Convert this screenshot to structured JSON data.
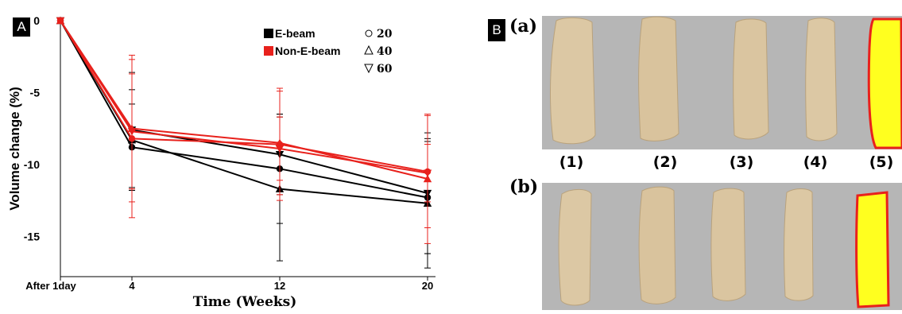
{
  "panel_a": {
    "tag": "A",
    "chart_data": {
      "type": "line",
      "title": "",
      "xlabel": "Time (Weeks)",
      "ylabel": "Volume change (%)",
      "x_categories": [
        "After 1day",
        "4",
        "12",
        "20"
      ],
      "x": [
        0,
        4,
        12,
        20
      ],
      "ylim": [
        -17.8,
        0
      ],
      "yticks": [
        0,
        -5,
        -10,
        -15
      ],
      "ytick_labels": [
        "0",
        "-5",
        "-10",
        "-15"
      ],
      "grid": false,
      "legend_placement": "top-right",
      "legend_colors": [
        {
          "label": "E-beam",
          "color": "#000000"
        },
        {
          "label": "Non-E-beam",
          "color": "#e8211c"
        }
      ],
      "legend_markers": [
        {
          "label": "20",
          "marker": "circle"
        },
        {
          "label": "40",
          "marker": "triangle-up"
        },
        {
          "label": "60",
          "marker": "triangle-down"
        }
      ],
      "series": [
        {
          "group": "E-beam",
          "dose": "20",
          "color": "#000000",
          "marker": "circle",
          "values": [
            0,
            -8.8,
            -10.3,
            -12.3
          ],
          "errors": [
            0,
            3.0,
            3.8,
            3.9
          ]
        },
        {
          "group": "E-beam",
          "dose": "40",
          "color": "#000000",
          "marker": "triangle-up",
          "values": [
            0,
            -8.3,
            -11.7,
            -12.7
          ],
          "errors": [
            0,
            3.5,
            5.0,
            4.5
          ]
        },
        {
          "group": "E-beam",
          "dose": "60",
          "color": "#000000",
          "marker": "triangle-down",
          "values": [
            0,
            -7.6,
            -9.3,
            -12.0
          ],
          "errors": [
            0,
            4.0,
            2.8,
            4.2
          ]
        },
        {
          "group": "Non-E-beam",
          "dose": "20",
          "color": "#e8211c",
          "marker": "circle",
          "values": [
            0,
            -8.2,
            -8.6,
            -10.5
          ],
          "errors": [
            0,
            5.5,
            3.9,
            3.9
          ]
        },
        {
          "group": "Non-E-beam",
          "dose": "40",
          "color": "#e8211c",
          "marker": "triangle-up",
          "values": [
            0,
            -7.5,
            -8.5,
            -11.0
          ],
          "errors": [
            0,
            5.1,
            3.6,
            4.5
          ]
        },
        {
          "group": "Non-E-beam",
          "dose": "60",
          "color": "#e8211c",
          "marker": "triangle-down",
          "values": [
            0,
            -7.7,
            -8.9,
            -10.6
          ],
          "errors": [
            0,
            4.0,
            2.2,
            2.0
          ]
        }
      ]
    }
  },
  "panel_b": {
    "tag": "B",
    "row_a_label": "(a)",
    "row_b_label": "(b)",
    "column_labels": [
      "(1)",
      "(2)",
      "(3)",
      "(4)",
      "(5)"
    ],
    "specimen_color": "#dcc8a4",
    "highlight_fill": "#ffff1f",
    "highlight_border": "#e8211c",
    "background_color": "#b6b6b6"
  }
}
